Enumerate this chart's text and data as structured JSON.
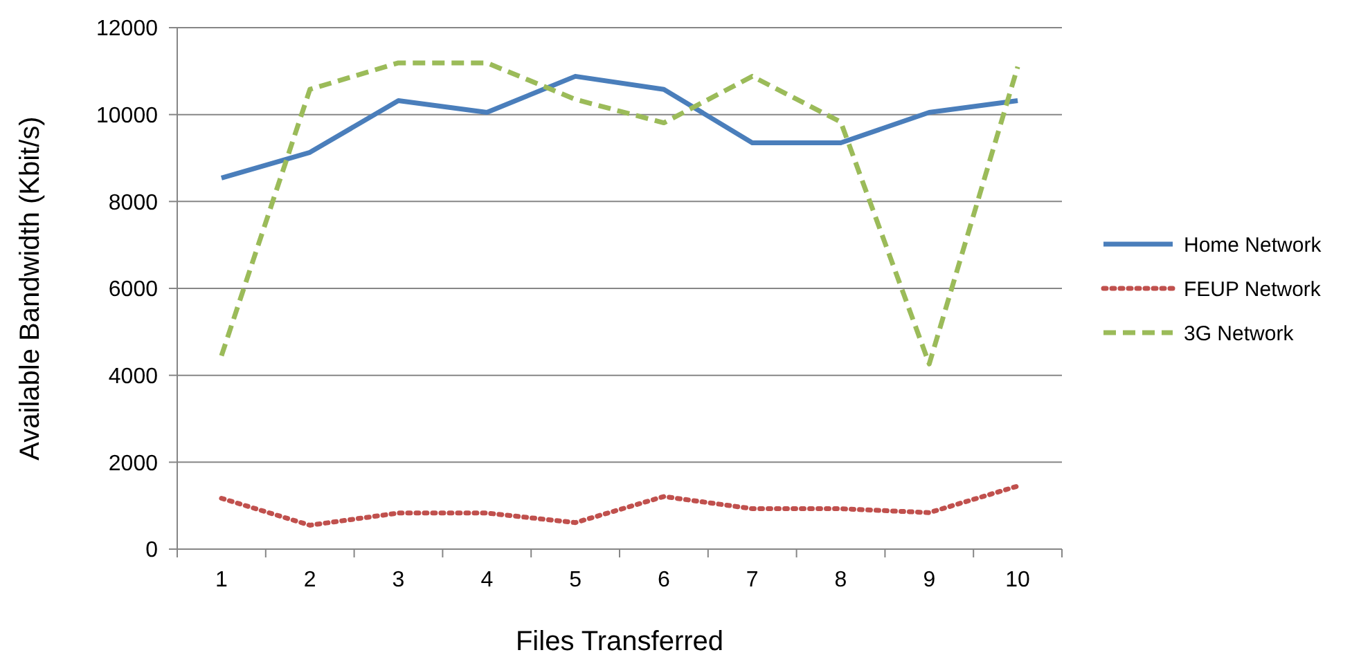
{
  "chart_data": {
    "type": "line",
    "xlabel": "Files Transferred",
    "ylabel": "Available Bandwidth (Kbit/s)",
    "categories": [
      "1",
      "2",
      "3",
      "4",
      "5",
      "6",
      "7",
      "8",
      "9",
      "10"
    ],
    "ylim": [
      0,
      12000
    ],
    "yticks": [
      0,
      2000,
      4000,
      6000,
      8000,
      10000,
      12000
    ],
    "grid": "y",
    "legend": "right",
    "marker": "none",
    "series": [
      {
        "name": "Home Network",
        "color": "#4a7ebb",
        "line_style": "solid",
        "values": [
          8540,
          9130,
          10320,
          10050,
          10880,
          10580,
          9350,
          9350,
          10050,
          10320
        ]
      },
      {
        "name": "FEUP Network",
        "color": "#c0504d",
        "line_style": "dotted",
        "values": [
          1170,
          550,
          830,
          830,
          610,
          1210,
          930,
          930,
          840,
          1450
        ]
      },
      {
        "name": "3G Network",
        "color": "#9bbb59",
        "line_style": "dashed",
        "values": [
          4450,
          10580,
          11190,
          11190,
          10350,
          9810,
          10880,
          9830,
          4260,
          11100
        ]
      }
    ]
  }
}
